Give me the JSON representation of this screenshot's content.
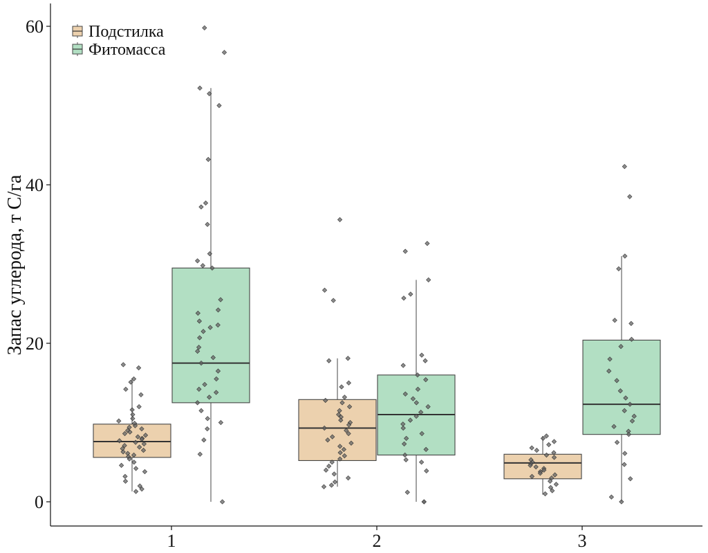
{
  "chart_data": {
    "type": "box",
    "title": "",
    "xlabel": "",
    "ylabel": "Запас углерода, т С/га",
    "ylim": [
      -4.5,
      63
    ],
    "yticks": [
      0,
      20,
      40,
      60
    ],
    "categories": [
      "1",
      "2",
      "3"
    ],
    "legend_position": "top-left",
    "series": [
      {
        "name": "Подстилка",
        "color": "#ecd1ae",
        "boxes": [
          {
            "category": "1",
            "whisker_low": 1.3,
            "q1": 5.6,
            "median": 7.6,
            "q3": 9.8,
            "whisker_high": 15.6,
            "points": [
              17.3,
              16.9,
              15.5,
              15.1,
              14.2,
              13.5,
              12.0,
              11.6,
              11.0,
              10.5,
              10.2,
              9.9,
              9.6,
              9.4,
              9.2,
              9.0,
              8.8,
              8.6,
              8.4,
              8.2,
              8.0,
              7.9,
              7.7,
              7.5,
              7.3,
              7.1,
              6.9,
              6.7,
              6.5,
              6.3,
              6.1,
              5.9,
              5.7,
              5.4,
              5.0,
              4.6,
              4.2,
              3.8,
              3.2,
              2.6,
              2.0,
              1.6,
              1.3
            ]
          },
          {
            "category": "2",
            "whisker_low": 1.9,
            "q1": 5.2,
            "median": 9.3,
            "q3": 12.9,
            "whisker_high": 18.1,
            "points": [
              35.6,
              26.7,
              25.4,
              18.1,
              17.8,
              15.0,
              14.5,
              13.2,
              12.8,
              12.5,
              12.0,
              11.5,
              11.0,
              10.7,
              10.3,
              10.0,
              9.7,
              9.3,
              9.0,
              8.6,
              8.2,
              7.8,
              7.4,
              7.0,
              6.6,
              6.2,
              5.8,
              5.4,
              5.0,
              4.5,
              4.0,
              3.5,
              3.0,
              2.5,
              2.1,
              1.9
            ]
          },
          {
            "category": "3",
            "whisker_low": 0.9,
            "q1": 2.9,
            "median": 4.9,
            "q3": 6.0,
            "whisker_high": 8.3,
            "points": [
              8.3,
              8.0,
              7.6,
              7.2,
              6.8,
              6.5,
              6.2,
              5.9,
              5.6,
              5.3,
              5.0,
              4.8,
              4.6,
              4.4,
              4.2,
              4.0,
              3.8,
              3.6,
              3.4,
              3.2,
              3.0,
              2.6,
              2.2,
              1.8,
              1.4,
              1.0
            ]
          }
        ]
      },
      {
        "name": "Фитомасса",
        "color": "#b2dfc3",
        "boxes": [
          {
            "category": "1",
            "whisker_low": 0.0,
            "q1": 12.5,
            "median": 17.5,
            "q3": 29.5,
            "whisker_high": 52.2,
            "points": [
              59.8,
              56.7,
              52.2,
              51.5,
              50.0,
              43.2,
              37.7,
              37.2,
              35.0,
              31.3,
              30.4,
              29.8,
              29.5,
              25.5,
              24.2,
              23.8,
              22.8,
              22.3,
              22.0,
              21.5,
              20.7,
              19.5,
              19.0,
              18.2,
              17.5,
              16.5,
              15.5,
              14.8,
              14.2,
              13.8,
              13.2,
              12.5,
              11.5,
              10.5,
              10.0,
              9.2,
              7.8,
              6.0,
              0.0
            ]
          },
          {
            "category": "2",
            "whisker_low": 0.0,
            "q1": 5.9,
            "median": 11.0,
            "q3": 16.0,
            "whisker_high": 28.0,
            "points": [
              32.6,
              31.6,
              28.0,
              26.2,
              25.7,
              18.5,
              17.8,
              17.2,
              16.0,
              15.4,
              14.2,
              13.6,
              13.0,
              12.5,
              12.0,
              11.3,
              10.8,
              10.3,
              9.8,
              9.3,
              8.6,
              8.0,
              7.3,
              6.6,
              5.9,
              5.3,
              5.0,
              3.9,
              1.2,
              0.0,
              0.0
            ]
          },
          {
            "category": "3",
            "whisker_low": 0.0,
            "q1": 8.5,
            "median": 12.3,
            "q3": 20.4,
            "whisker_high": 31.0,
            "points": [
              42.3,
              38.5,
              31.0,
              29.4,
              22.9,
              22.5,
              20.5,
              19.6,
              18.0,
              16.5,
              15.3,
              14.0,
              13.1,
              12.3,
              11.5,
              10.8,
              10.2,
              9.5,
              8.9,
              8.5,
              7.5,
              6.1,
              4.7,
              2.9,
              0.6,
              0.0
            ]
          }
        ]
      }
    ]
  }
}
